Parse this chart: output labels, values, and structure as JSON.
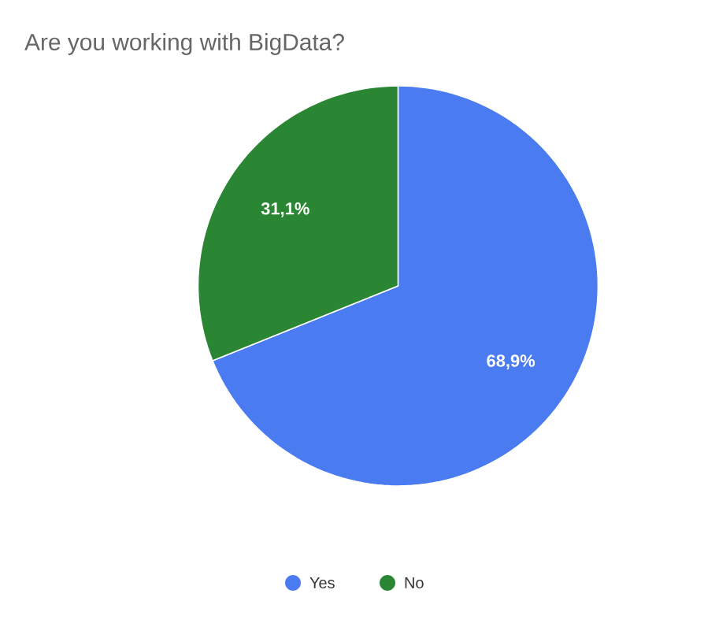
{
  "chart_data": {
    "type": "pie",
    "title": "Are you working with BigData?",
    "categories": [
      "Yes",
      "No"
    ],
    "values": [
      68.9,
      31.1
    ],
    "colors": [
      "#4a7bf0",
      "#2a8633"
    ],
    "value_labels": [
      "68,9%",
      "31,1%"
    ],
    "legend": "bottom"
  }
}
